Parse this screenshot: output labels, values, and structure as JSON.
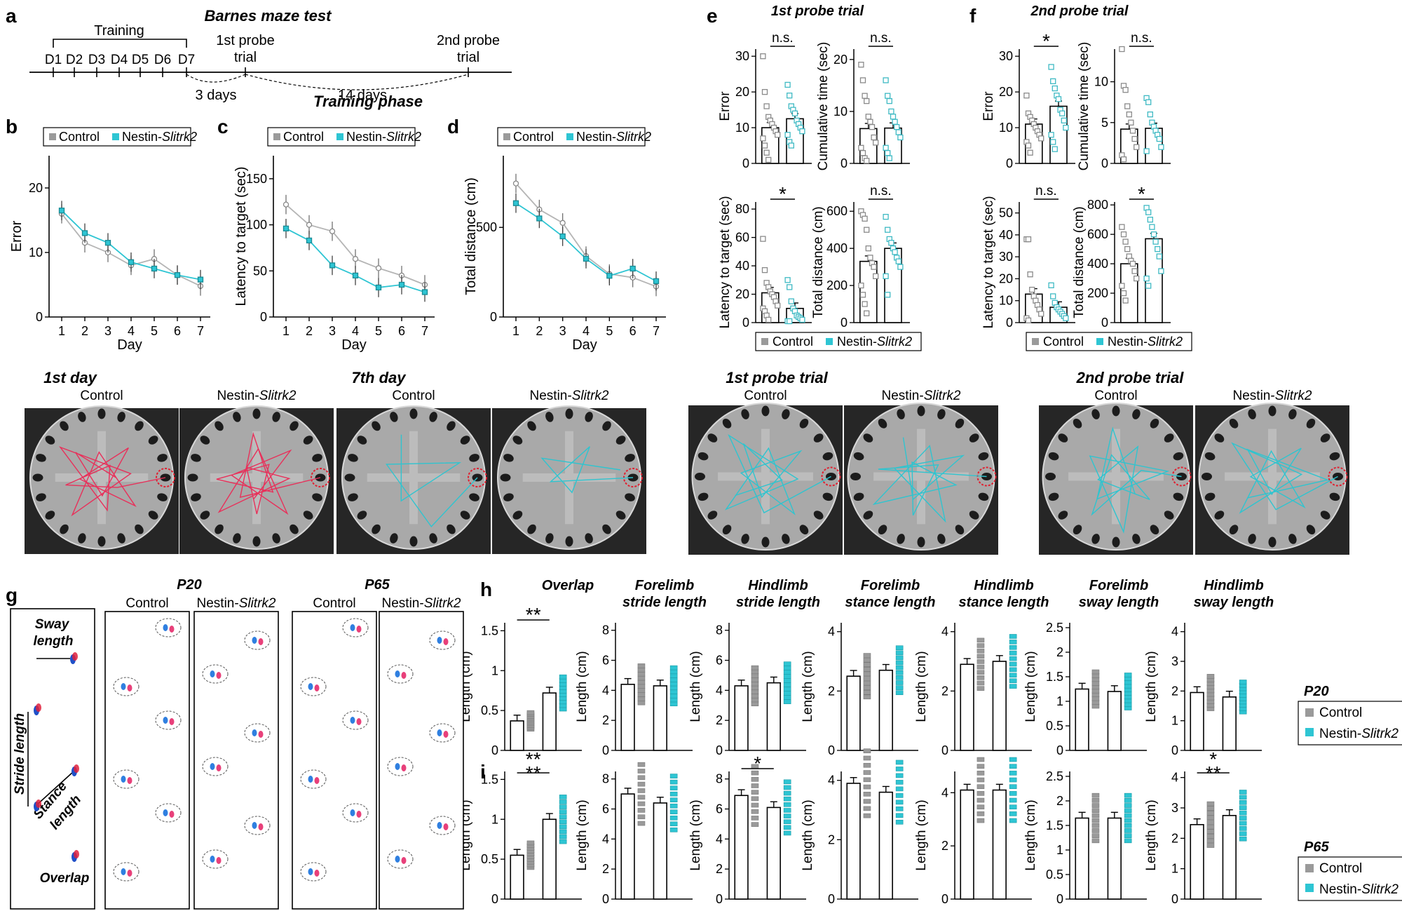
{
  "figure": {
    "title": "Barnes maze test",
    "panel_letters": [
      "a",
      "b",
      "c",
      "d",
      "e",
      "f",
      "g",
      "h",
      "i"
    ]
  },
  "timeline": {
    "training_label": "Training",
    "days": [
      "D1",
      "D2",
      "D3",
      "D4",
      "D5",
      "D6",
      "D7"
    ],
    "probe1": [
      "1st probe",
      "trial"
    ],
    "probe2": [
      "2nd probe",
      "trial"
    ],
    "gap1": "3 days",
    "gap2": "14 days"
  },
  "legend": {
    "control": "Control",
    "nestin_prefix": "Nestin-",
    "nestin_gene": "Slitrk2"
  },
  "colors": {
    "control": "#9a9a9a",
    "nestin": "#2ec5d3",
    "track_red": "#e8305a",
    "track_cyan": "#2fc4cf"
  },
  "chart_data": [
    {
      "id": "b",
      "type": "line",
      "title": "",
      "xlabel": "Day",
      "ylabel": "Error",
      "x": [
        1,
        2,
        3,
        4,
        5,
        6,
        7
      ],
      "ylim": [
        0,
        25
      ],
      "yticks": [
        0,
        10,
        20
      ],
      "series": [
        {
          "name": "Control",
          "values": [
            16,
            11.5,
            10,
            8,
            9,
            6.5,
            4.8
          ]
        },
        {
          "name": "Nestin-Slitrk2",
          "values": [
            16.5,
            13,
            11.5,
            8.5,
            7.5,
            6.5,
            5.8
          ]
        }
      ]
    },
    {
      "id": "c",
      "type": "line",
      "title": "Training phase",
      "xlabel": "Day",
      "ylabel": "Latency to target (sec)",
      "x": [
        1,
        2,
        3,
        4,
        5,
        6,
        7
      ],
      "ylim": [
        0,
        175
      ],
      "yticks": [
        0,
        50,
        100,
        150
      ],
      "series": [
        {
          "name": "Control",
          "values": [
            122,
            100,
            93,
            63,
            53,
            45,
            35
          ]
        },
        {
          "name": "Nestin-Slitrk2",
          "values": [
            96,
            83,
            56,
            45,
            32,
            35,
            27
          ]
        }
      ]
    },
    {
      "id": "d",
      "type": "line",
      "title": "",
      "xlabel": "Day",
      "ylabel": "Total distance (cm)",
      "x": [
        1,
        2,
        3,
        4,
        5,
        6,
        7
      ],
      "ylim": [
        0,
        900
      ],
      "yticks": [
        0,
        500
      ],
      "series": [
        {
          "name": "Control",
          "values": [
            745,
            600,
            525,
            340,
            240,
            220,
            170
          ]
        },
        {
          "name": "Nestin-Slitrk2",
          "values": [
            635,
            550,
            450,
            325,
            230,
            270,
            200
          ]
        }
      ]
    },
    {
      "id": "e1",
      "type": "bar",
      "title": "1st probe trial",
      "ylabel": "Error",
      "ylim": [
        0,
        32
      ],
      "yticks": [
        0,
        10,
        20,
        30
      ],
      "categories": [
        "Control",
        "Nestin-Slitrk2"
      ],
      "values": [
        10,
        12.5
      ],
      "sig": "n.s.",
      "points": [
        [
          30,
          20,
          16,
          13,
          12,
          11,
          10,
          9,
          8,
          7,
          5,
          3,
          1
        ],
        [
          22,
          19,
          16,
          15,
          14,
          12,
          11,
          10,
          9,
          8,
          6,
          5
        ]
      ]
    },
    {
      "id": "e2",
      "type": "bar",
      "title": "",
      "ylabel": "Cumulative time (sec)",
      "ylim": [
        0,
        22
      ],
      "yticks": [
        0,
        10,
        20
      ],
      "categories": [
        "Control",
        "Nestin-Slitrk2"
      ],
      "values": [
        6.7,
        6.8
      ],
      "sig": "n.s.",
      "points": [
        [
          19,
          16,
          13,
          12,
          9,
          8,
          7,
          5,
          4,
          3,
          2,
          1,
          0.5
        ],
        [
          16,
          13,
          12,
          10,
          9,
          8,
          7,
          6,
          5,
          3,
          2,
          1
        ]
      ]
    },
    {
      "id": "e3",
      "type": "bar",
      "title": "",
      "ylabel": "Latency to target (sec)",
      "ylim": [
        0,
        85
      ],
      "yticks": [
        0,
        20,
        40,
        60,
        80
      ],
      "categories": [
        "Control",
        "Nestin-Slitrk2"
      ],
      "values": [
        21,
        10
      ],
      "sig": "*",
      "points": [
        [
          59,
          37,
          28,
          25,
          22,
          20,
          18,
          15,
          12,
          10,
          8,
          5,
          2
        ],
        [
          30,
          25,
          15,
          10,
          8,
          5,
          4,
          3,
          2,
          1,
          1
        ]
      ]
    },
    {
      "id": "e4",
      "type": "bar",
      "title": "",
      "ylabel": "Total distance (cm)",
      "ylim": [
        0,
        650
      ],
      "yticks": [
        0,
        200,
        400,
        600
      ],
      "categories": [
        "Control",
        "Nestin-Slitrk2"
      ],
      "values": [
        330,
        400
      ],
      "sig": "n.s.",
      "points": [
        [
          600,
          580,
          560,
          500,
          400,
          350,
          320,
          300,
          250,
          200,
          150,
          100,
          50
        ],
        [
          570,
          500,
          450,
          430,
          400,
          380,
          350,
          330,
          300,
          250,
          150
        ]
      ]
    },
    {
      "id": "f1",
      "type": "bar",
      "title": "2nd probe trial",
      "ylabel": "Error",
      "ylim": [
        0,
        32
      ],
      "yticks": [
        0,
        10,
        20,
        30
      ],
      "categories": [
        "Control",
        "Nestin-Slitrk2"
      ],
      "values": [
        11,
        16
      ],
      "sig": "*",
      "points": [
        [
          19,
          14,
          13,
          12,
          11,
          10,
          9,
          8,
          7,
          6,
          5,
          3
        ],
        [
          27,
          23,
          21,
          19,
          18,
          15,
          14,
          12,
          10,
          8,
          6,
          4
        ]
      ]
    },
    {
      "id": "f2",
      "type": "bar",
      "title": "",
      "ylabel": "Cumulative time (sec)",
      "ylim": [
        0,
        14
      ],
      "yticks": [
        0,
        5,
        10
      ],
      "categories": [
        "Control",
        "Nestin-Slitrk2"
      ],
      "values": [
        4.2,
        4.3
      ],
      "sig": "n.s.",
      "points": [
        [
          14,
          9.5,
          9,
          7,
          6,
          5,
          4,
          3,
          2,
          1,
          0.5
        ],
        [
          8,
          7.5,
          6,
          5,
          4.5,
          4,
          3.5,
          3,
          2,
          1.5
        ]
      ]
    },
    {
      "id": "f3",
      "type": "bar",
      "title": "",
      "ylabel": "Latency to target (sec)",
      "ylim": [
        0,
        55
      ],
      "yticks": [
        0,
        10,
        20,
        30,
        40,
        50
      ],
      "categories": [
        "Control",
        "Nestin-Slitrk2"
      ],
      "values": [
        13,
        7
      ],
      "sig": "n.s.",
      "points": [
        [
          38,
          38,
          22,
          15,
          12,
          10,
          8,
          6,
          4,
          2,
          1
        ],
        [
          17,
          12,
          9,
          7,
          6,
          5,
          4,
          3,
          2
        ]
      ]
    },
    {
      "id": "f4",
      "type": "bar",
      "title": "",
      "ylabel": "Total distance (cm)",
      "ylim": [
        0,
        820
      ],
      "yticks": [
        0,
        200,
        400,
        600,
        800
      ],
      "categories": [
        "Control",
        "Nestin-Slitrk2"
      ],
      "values": [
        400,
        570
      ],
      "sig": "*",
      "points": [
        [
          650,
          600,
          550,
          500,
          450,
          420,
          400,
          350,
          300,
          250,
          200,
          150
        ],
        [
          780,
          750,
          700,
          650,
          600,
          550,
          500,
          450,
          350,
          300,
          250
        ]
      ]
    },
    {
      "id": "h1",
      "type": "bar",
      "title": "Overlap",
      "ylabel": "Length (cm)",
      "ylim": [
        0,
        1.6
      ],
      "yticks": [
        0,
        0.5,
        1,
        1.5
      ],
      "tick_labels": [
        "0",
        "0.5",
        "1",
        "1.5"
      ],
      "categories": [
        "Control",
        "Nestin-Slitrk2"
      ],
      "values": [
        0.37,
        0.72
      ],
      "sig": "**"
    },
    {
      "id": "h2",
      "type": "bar",
      "title": "Forelimb stride length",
      "ylabel": "Length (cm)",
      "ylim": [
        0,
        8.5
      ],
      "yticks": [
        0,
        2,
        4,
        6,
        8
      ],
      "categories": [
        "Control",
        "Nestin-Slitrk2"
      ],
      "values": [
        4.4,
        4.3
      ],
      "sig": ""
    },
    {
      "id": "h3",
      "type": "bar",
      "title": "Hindlimb stride length",
      "ylabel": "Length (cm)",
      "ylim": [
        0,
        8.5
      ],
      "yticks": [
        0,
        2,
        4,
        6,
        8
      ],
      "categories": [
        "Control",
        "Nestin-Slitrk2"
      ],
      "values": [
        4.3,
        4.5
      ],
      "sig": ""
    },
    {
      "id": "h4",
      "type": "bar",
      "title": "Forelimb stance length",
      "ylabel": "Length (cm)",
      "ylim": [
        0,
        4.3
      ],
      "yticks": [
        0,
        2,
        4
      ],
      "categories": [
        "Control",
        "Nestin-Slitrk2"
      ],
      "values": [
        2.5,
        2.7
      ],
      "sig": ""
    },
    {
      "id": "h5",
      "type": "bar",
      "title": "Hindlimb stance length",
      "ylabel": "Length (cm)",
      "ylim": [
        0,
        4.3
      ],
      "yticks": [
        0,
        2,
        4
      ],
      "categories": [
        "Control",
        "Nestin-Slitrk2"
      ],
      "values": [
        2.9,
        3.0
      ],
      "sig": ""
    },
    {
      "id": "h6",
      "type": "bar",
      "title": "Forelimb sway length",
      "ylabel": "Length (cm)",
      "ylim": [
        0,
        2.6
      ],
      "yticks": [
        0,
        0.5,
        1,
        1.5,
        2,
        2.5
      ],
      "tick_labels": [
        "0",
        "0.5",
        "1",
        "1.5",
        "2",
        "2.5"
      ],
      "categories": [
        "Control",
        "Nestin-Slitrk2"
      ],
      "values": [
        1.25,
        1.2
      ],
      "sig": ""
    },
    {
      "id": "h7",
      "type": "bar",
      "title": "Hindlimb sway length",
      "ylabel": "Length (cm)",
      "ylim": [
        0,
        4.3
      ],
      "yticks": [
        0,
        1,
        2,
        3,
        4
      ],
      "categories": [
        "Control",
        "Nestin-Slitrk2"
      ],
      "values": [
        1.95,
        1.8
      ],
      "sig": ""
    },
    {
      "id": "i1",
      "type": "bar",
      "title": "",
      "ylabel": "Length (cm)",
      "ylim": [
        0,
        1.6
      ],
      "yticks": [
        0,
        0.5,
        1,
        1.5
      ],
      "tick_labels": [
        "0",
        "0.5",
        "1",
        "1.5"
      ],
      "categories": [
        "Control",
        "Nestin-Slitrk2"
      ],
      "values": [
        0.55,
        1.0
      ],
      "sig": "****"
    },
    {
      "id": "i2",
      "type": "bar",
      "title": "",
      "ylabel": "Length (cm)",
      "ylim": [
        0,
        8.5
      ],
      "yticks": [
        0,
        2,
        4,
        6,
        8
      ],
      "categories": [
        "Control",
        "Nestin-Slitrk2"
      ],
      "values": [
        7.0,
        6.4
      ],
      "sig": ""
    },
    {
      "id": "i3",
      "type": "bar",
      "title": "",
      "ylabel": "Length (cm)",
      "ylim": [
        0,
        8.5
      ],
      "yticks": [
        0,
        2,
        4,
        6,
        8
      ],
      "categories": [
        "Control",
        "Nestin-Slitrk2"
      ],
      "values": [
        6.9,
        6.1
      ],
      "sig": "*"
    },
    {
      "id": "i4",
      "type": "bar",
      "title": "",
      "ylabel": "Length (cm)",
      "ylim": [
        0,
        4.3
      ],
      "yticks": [
        0,
        2,
        4
      ],
      "categories": [
        "Control",
        "Nestin-Slitrk2"
      ],
      "values": [
        3.9,
        3.6
      ],
      "sig": ""
    },
    {
      "id": "i5",
      "type": "bar",
      "title": "",
      "ylabel": "Length (cm)",
      "ylim": [
        0,
        4.8
      ],
      "yticks": [
        0,
        2,
        4
      ],
      "categories": [
        "Control",
        "Nestin-Slitrk2"
      ],
      "values": [
        4.1,
        4.1
      ],
      "sig": ""
    },
    {
      "id": "i6",
      "type": "bar",
      "title": "",
      "ylabel": "Length (cm)",
      "ylim": [
        0,
        2.6
      ],
      "yticks": [
        0,
        0.5,
        1,
        1.5,
        2,
        2.5
      ],
      "tick_labels": [
        "0",
        "0.5",
        "1",
        "1.5",
        "2",
        "2.5"
      ],
      "categories": [
        "Control",
        "Nestin-Slitrk2"
      ],
      "values": [
        1.65,
        1.65
      ],
      "sig": ""
    },
    {
      "id": "i7",
      "type": "bar",
      "title": "",
      "ylabel": "Length (cm)",
      "ylim": [
        0,
        4.2
      ],
      "yticks": [
        0,
        1,
        2,
        3,
        4
      ],
      "categories": [
        "Control",
        "Nestin-Slitrk2"
      ],
      "values": [
        2.45,
        2.75
      ],
      "sig": "***"
    }
  ],
  "mazes": {
    "group1": {
      "title": "1st day",
      "labels": [
        "Control",
        "Nestin-Slitrk2"
      ]
    },
    "group2": {
      "title": "7th day",
      "labels": [
        "Control",
        "Nestin-Slitrk2"
      ]
    },
    "group3": {
      "title": "1st probe trial",
      "labels": [
        "Control",
        "Nestin-Slitrk2"
      ]
    },
    "group4": {
      "title": "2nd probe trial",
      "labels": [
        "Control",
        "Nestin-Slitrk2"
      ]
    }
  },
  "gait": {
    "labels": {
      "sway": [
        "Sway",
        "length"
      ],
      "stride": "Stride length",
      "stance": [
        "Stance",
        "length"
      ],
      "overlap": "Overlap"
    },
    "p20": "P20",
    "p65": "P65",
    "col_labels": [
      "Control",
      "Nestin-Slitrk2",
      "Control",
      "Nestin-Slitrk2"
    ]
  },
  "side_legends": {
    "p20": "P20",
    "p65": "P65"
  }
}
